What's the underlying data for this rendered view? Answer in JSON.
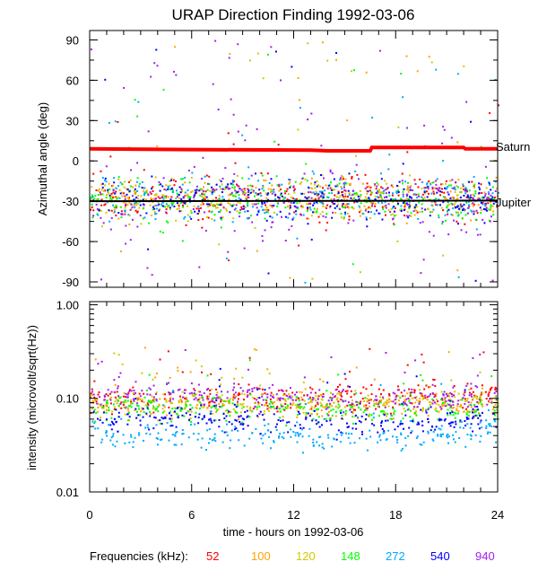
{
  "chart_data": [
    {
      "type": "scatter",
      "title": "URAP Direction Finding  1992-03-06",
      "ylabel": "Azimuthal angle (deg)",
      "ylim": [
        -94,
        97
      ],
      "xlim": [
        0,
        24
      ],
      "yticks": [
        90,
        60,
        30,
        0,
        -30,
        -60,
        -90
      ],
      "ytick_labels": [
        "90",
        "60",
        "30",
        "0",
        "-30",
        "-60",
        "-90"
      ],
      "reference_lines": [
        {
          "name": "Saturn",
          "color": "#ff0000",
          "points": [
            [
              0,
              9
            ],
            [
              5,
              8.5
            ],
            [
              13,
              8
            ],
            [
              14,
              7.5
            ],
            [
              16.5,
              7.5
            ],
            [
              16.6,
              10
            ],
            [
              22,
              10
            ],
            [
              22.1,
              9
            ],
            [
              24,
              9
            ]
          ]
        },
        {
          "name": "Jupiter",
          "color": "#000000",
          "points": [
            [
              0,
              -30
            ],
            [
              24,
              -29.5
            ]
          ]
        }
      ],
      "scatter_model": {
        "center_deg": -27,
        "spread_deg": 8,
        "outlier_fraction": 0.12
      }
    },
    {
      "type": "scatter",
      "ylabel": "intensity (microvolt/sqrt(Hz))",
      "yscale": "log",
      "ylim": [
        0.01,
        1.08
      ],
      "xlim": [
        0,
        24
      ],
      "yticks": [
        1.0,
        0.1,
        0.01
      ],
      "ytick_labels": [
        "1.00",
        "0.10",
        "0.01"
      ],
      "xticks": [
        0,
        6,
        12,
        18,
        24
      ],
      "xtick_labels": [
        "0",
        "6",
        "12",
        "18",
        "24"
      ],
      "xlabel": "time - hours on 1992-03-06",
      "series_medians": {
        "hours": [
          0,
          13,
          24
        ],
        "52": [
          0.1,
          0.1,
          0.12
        ],
        "100": [
          0.085,
          0.08,
          0.09
        ],
        "120": [
          0.09,
          0.085,
          0.1
        ],
        "148": [
          0.08,
          0.07,
          0.08
        ],
        "272": [
          0.04,
          0.035,
          0.045
        ],
        "540": [
          0.062,
          0.053,
          0.06
        ],
        "940": [
          0.11,
          0.095,
          0.105
        ]
      }
    }
  ],
  "legend": {
    "label": "Frequencies (kHz):",
    "items": [
      {
        "name": "52",
        "color": "#ff0000"
      },
      {
        "name": "100",
        "color": "#ffa500"
      },
      {
        "name": "120",
        "color": "#d4c800"
      },
      {
        "name": "148",
        "color": "#00ff00"
      },
      {
        "name": "272",
        "color": "#00aaff"
      },
      {
        "name": "540",
        "color": "#0000ff"
      },
      {
        "name": "940",
        "color": "#a020f0"
      }
    ]
  },
  "labels": {
    "saturn": "Saturn",
    "jupiter": "Jupiter"
  }
}
